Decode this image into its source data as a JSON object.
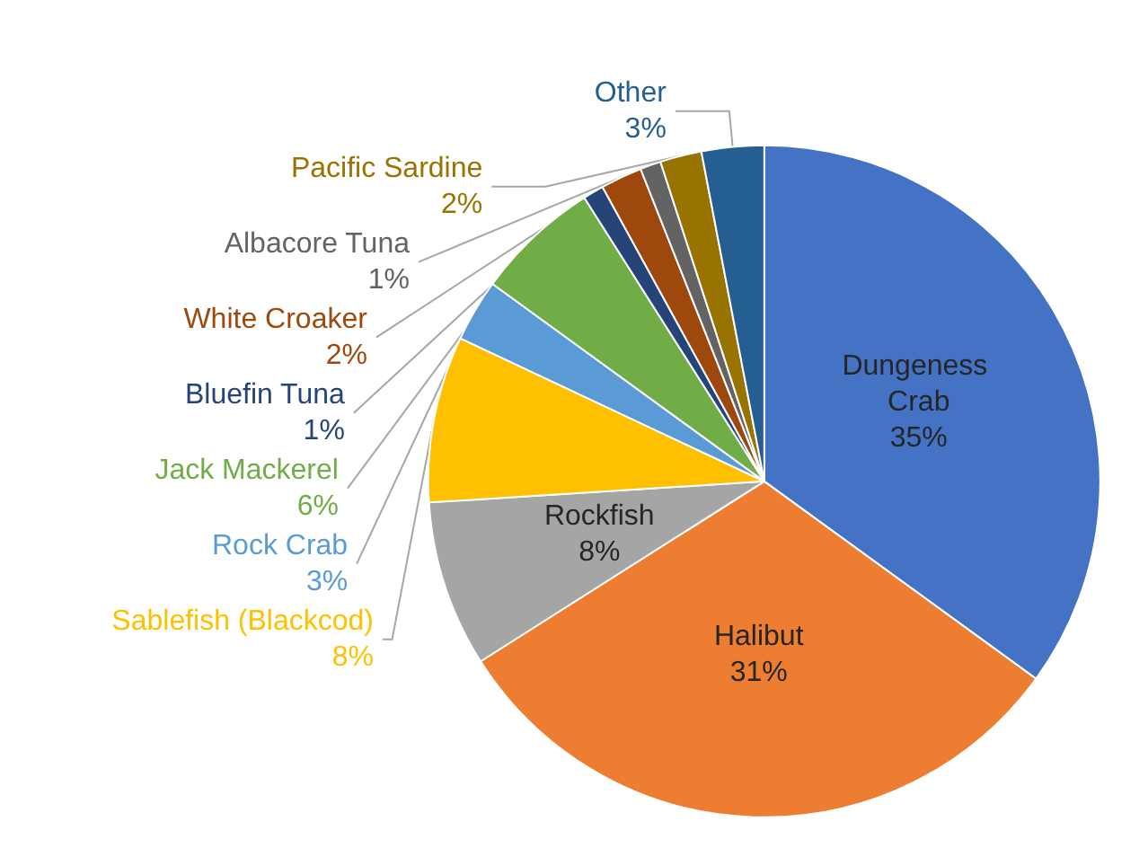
{
  "chart_data": {
    "type": "pie",
    "categories": [
      "Dungeness Crab",
      "Halibut",
      "Rockfish",
      "Sablefish (Blackcod)",
      "Rock Crab",
      "Jack Mackerel",
      "Bluefin Tuna",
      "White Croaker",
      "Albacore Tuna",
      "Pacific Sardine",
      "Other"
    ],
    "values": [
      35,
      31,
      8,
      8,
      3,
      6,
      1,
      2,
      1,
      2,
      3
    ],
    "value_labels": [
      "35%",
      "31%",
      "8%",
      "8%",
      "3%",
      "6%",
      "1%",
      "2%",
      "1%",
      "2%",
      "3%"
    ],
    "colors": [
      "#4472c4",
      "#ed7d31",
      "#a5a5a5",
      "#ffc000",
      "#5b9bd5",
      "#70ad47",
      "#264478",
      "#9e480e",
      "#636363",
      "#997300",
      "#255e91"
    ],
    "legend": false
  }
}
